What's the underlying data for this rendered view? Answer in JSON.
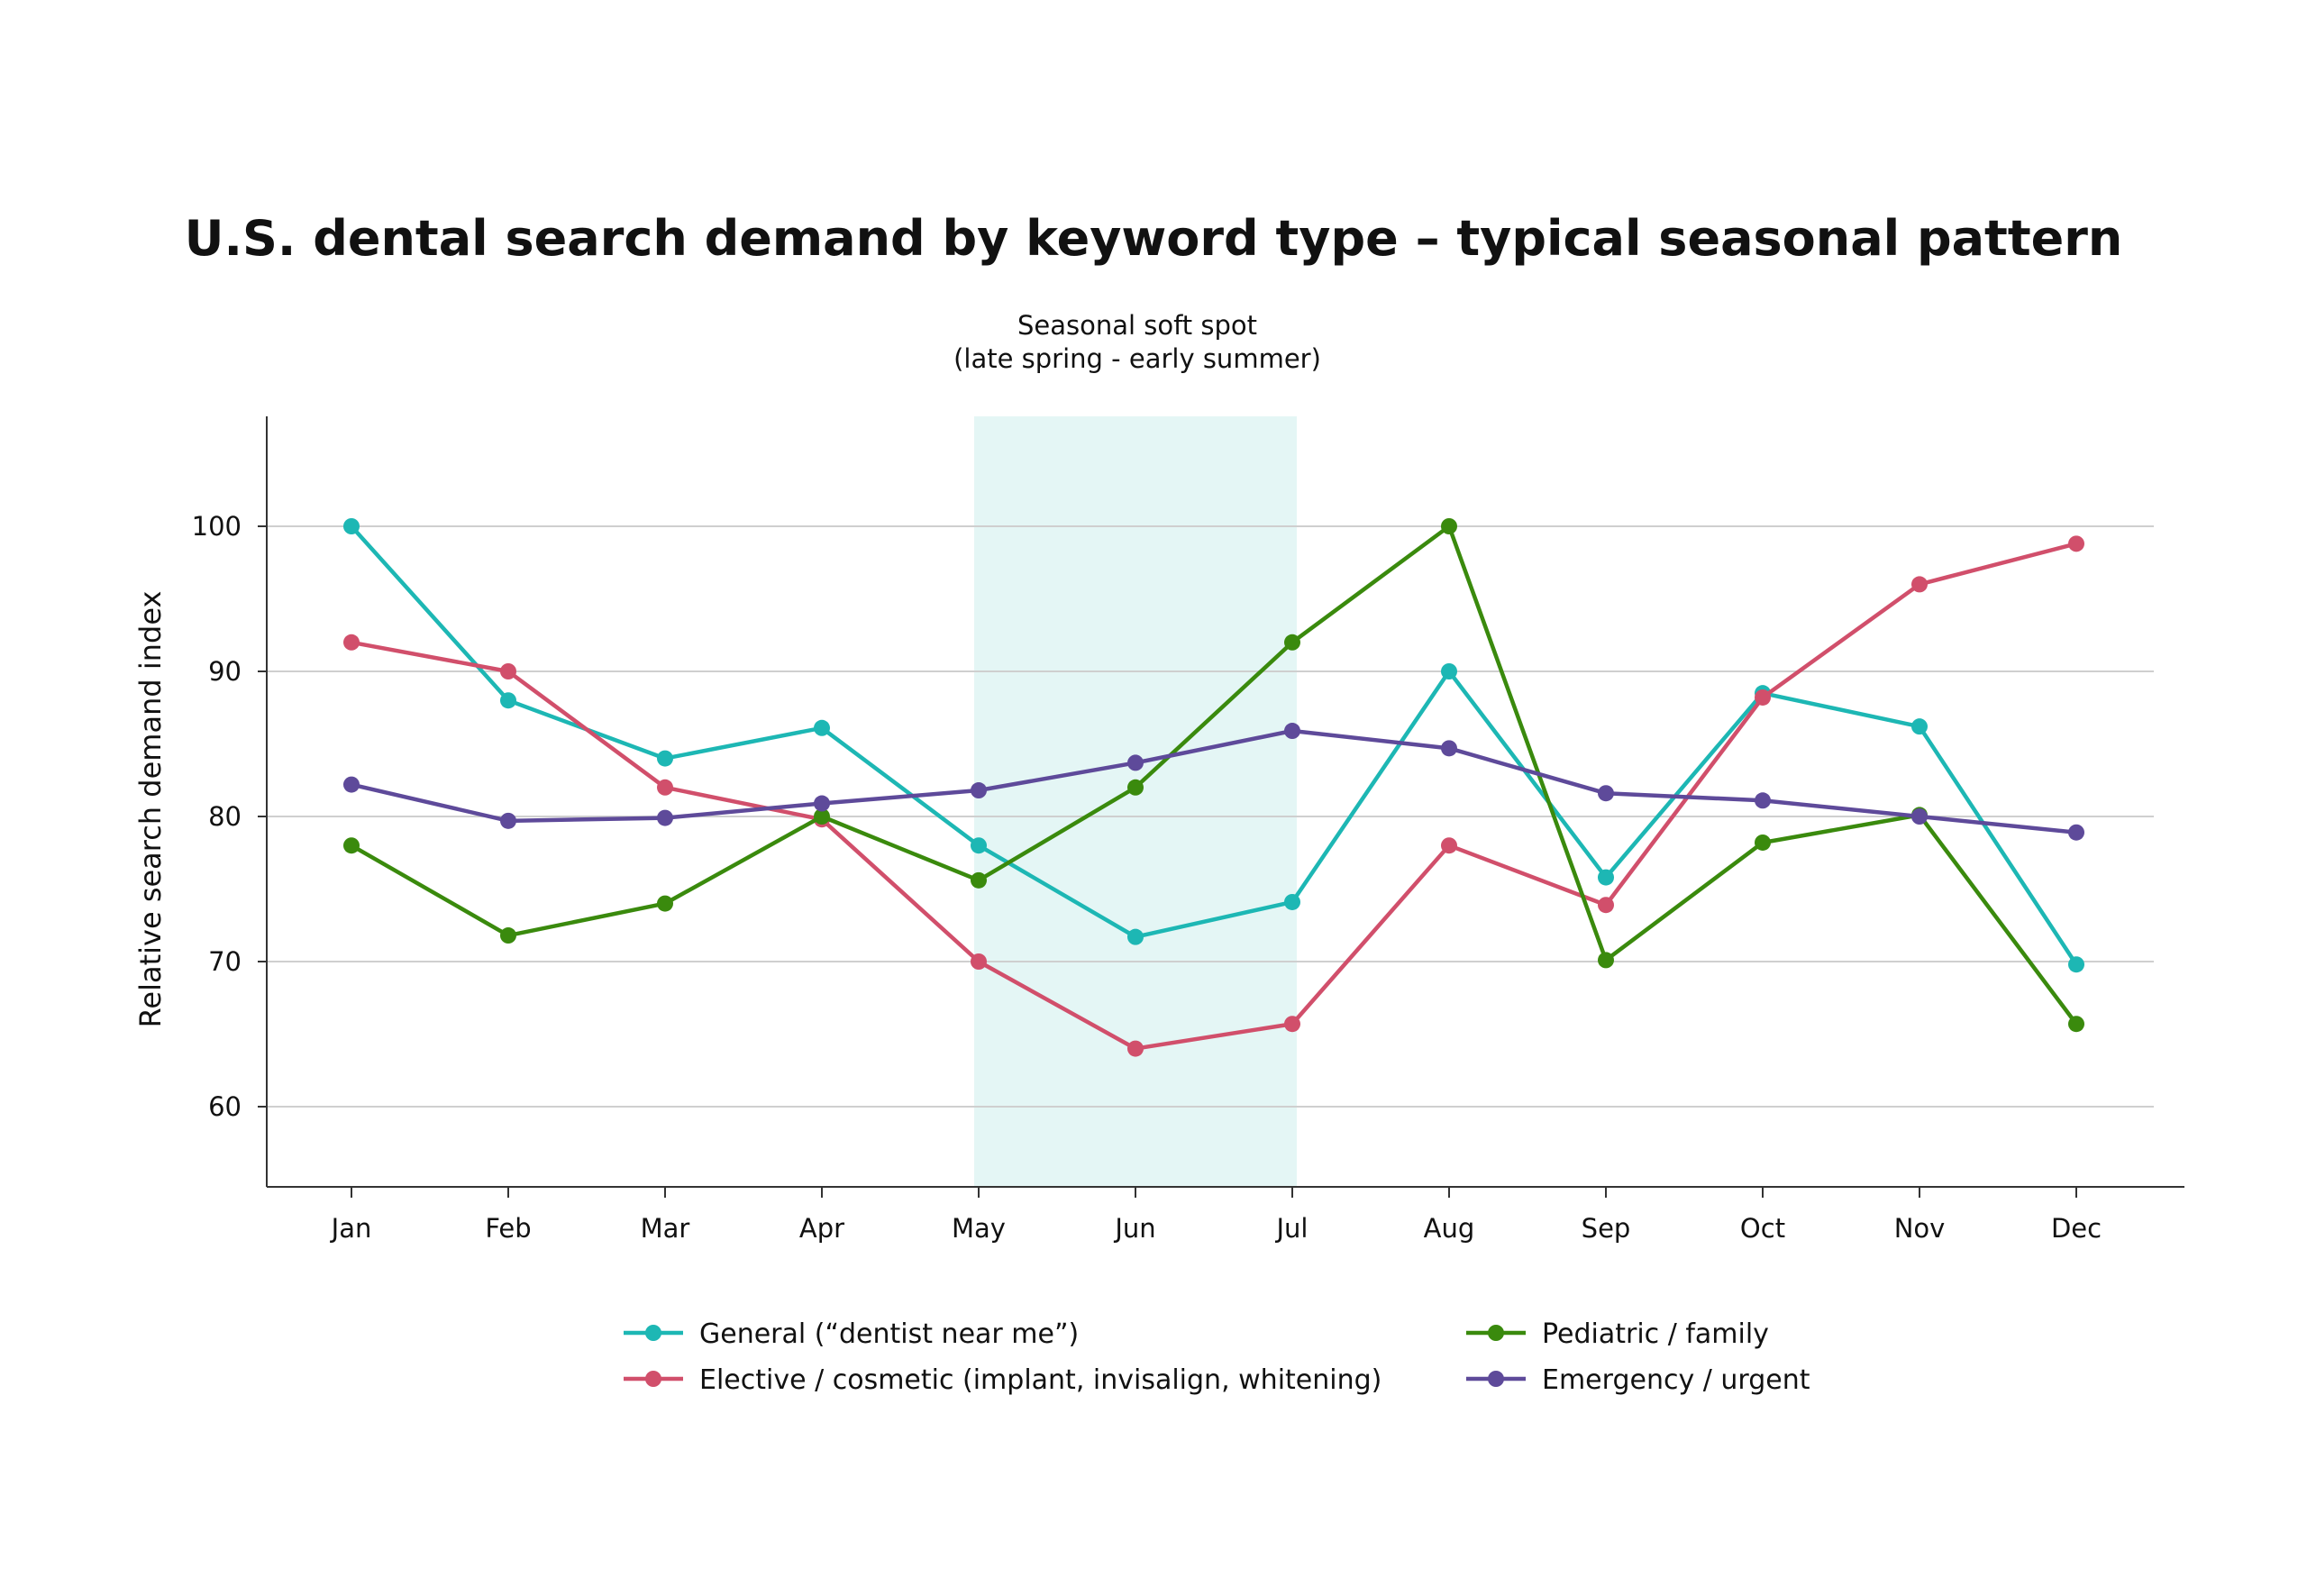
{
  "chart_data": {
    "type": "line",
    "title": "U.S. dental search demand by keyword type – typical seasonal pattern",
    "xlabel": "",
    "ylabel": "Relative search demand index",
    "categories": [
      "Jan",
      "Feb",
      "Mar",
      "Apr",
      "May",
      "Jun",
      "Jul",
      "Aug",
      "Sep",
      "Oct",
      "Nov",
      "Dec"
    ],
    "ylim": [
      54.7,
      107.6
    ],
    "yticks": [
      60,
      70,
      80,
      90,
      100
    ],
    "grid": "horizontal",
    "legend_position": "bottom",
    "annotation": {
      "lines": [
        "Seasonal soft spot",
        "(late spring - early summer)"
      ],
      "span_from": "May",
      "span_to": "Jul",
      "color": "#e4f6f5"
    },
    "series": [
      {
        "name": "General (“dentist near me”)",
        "color": "#1db7b4",
        "values": [
          100,
          88,
          84,
          86.1,
          78,
          71.7,
          74.1,
          90,
          75.8,
          88.5,
          86.2,
          69.8
        ]
      },
      {
        "name": "Elective / cosmetic (implant, invisalign, whitening)",
        "color": "#d14f6b",
        "values": [
          92,
          90,
          82,
          79.8,
          70,
          64,
          65.7,
          78,
          73.9,
          88.2,
          96,
          98.8
        ]
      },
      {
        "name": "Pediatric / family",
        "color": "#3a8a0d",
        "values": [
          78,
          71.8,
          74,
          80,
          75.6,
          82,
          92,
          100,
          70.1,
          78.2,
          80.1,
          65.7
        ]
      },
      {
        "name": "Emergency / urgent",
        "color": "#5e4a9a",
        "values": [
          82.2,
          79.7,
          79.9,
          80.9,
          81.8,
          83.7,
          85.9,
          84.7,
          81.6,
          81.1,
          80,
          78.9
        ]
      }
    ]
  }
}
